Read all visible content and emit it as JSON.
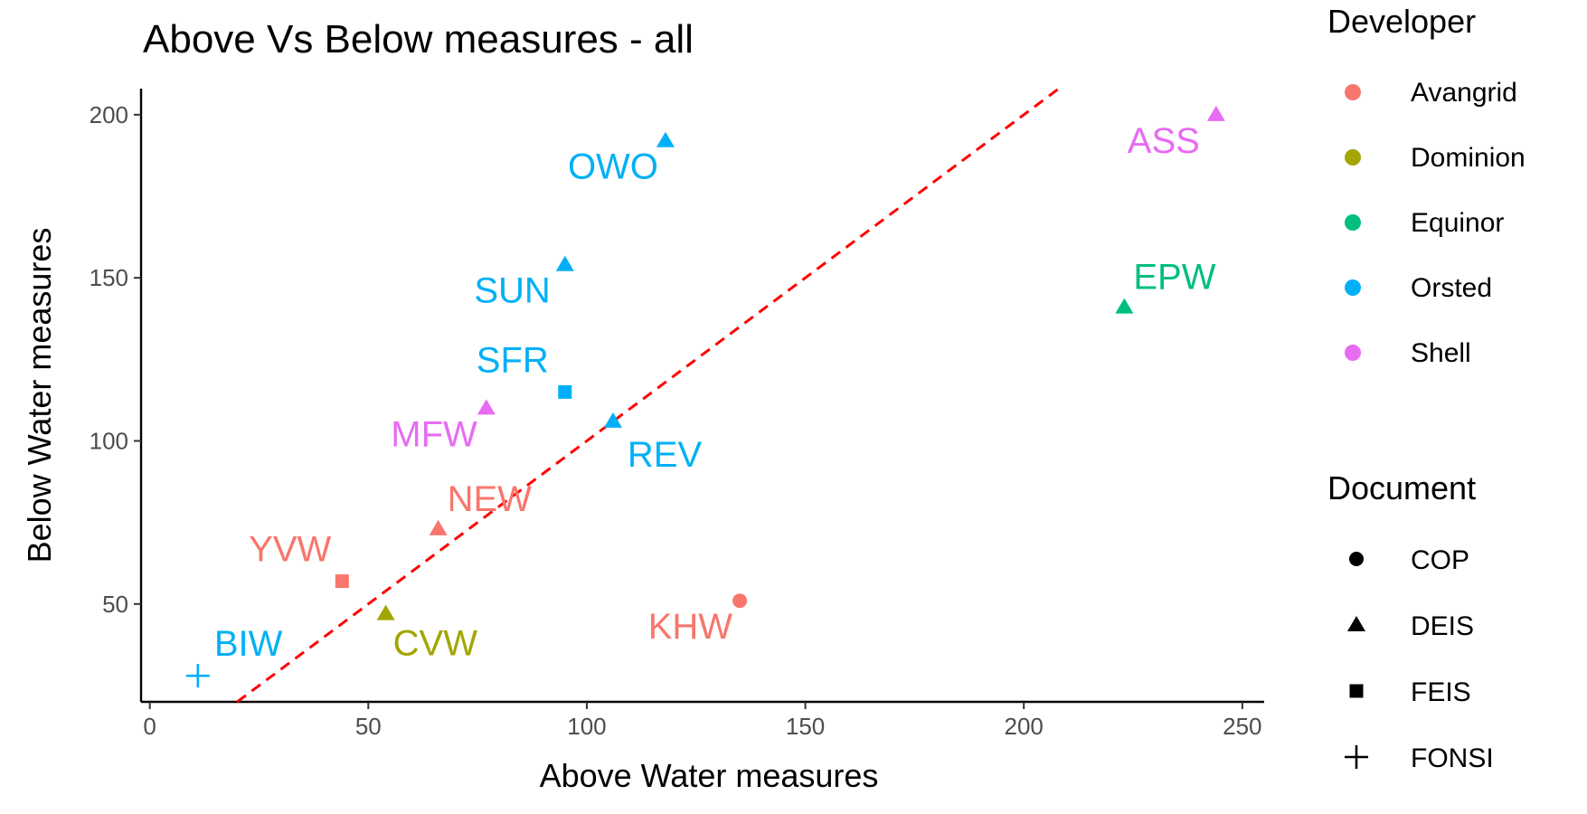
{
  "chart_data": {
    "type": "scatter",
    "title": "Above Vs Below measures - all",
    "xlabel": "Above Water measures",
    "ylabel": "Below Water measures",
    "xlim": [
      -2,
      255
    ],
    "ylim": [
      20,
      208
    ],
    "xticks": [
      0,
      50,
      100,
      150,
      200,
      250
    ],
    "yticks": [
      50,
      100,
      150,
      200
    ],
    "grid": false,
    "reference_line": {
      "style": "dashed",
      "color": "#ff0000",
      "slope": 1,
      "intercept": 0
    },
    "points": [
      {
        "label": "ASS",
        "x": 244,
        "y": 200,
        "developer": "Shell",
        "document": "DEIS"
      },
      {
        "label": "OWO",
        "x": 118,
        "y": 192,
        "developer": "Orsted",
        "document": "DEIS"
      },
      {
        "label": "SUN",
        "x": 95,
        "y": 154,
        "developer": "Orsted",
        "document": "DEIS"
      },
      {
        "label": "EPW",
        "x": 223,
        "y": 141,
        "developer": "Equinor",
        "document": "DEIS"
      },
      {
        "label": "SFR",
        "x": 95,
        "y": 115,
        "developer": "Orsted",
        "document": "FEIS"
      },
      {
        "label": "MFW",
        "x": 77,
        "y": 110,
        "developer": "Shell",
        "document": "DEIS"
      },
      {
        "label": "REV",
        "x": 106,
        "y": 106,
        "developer": "Orsted",
        "document": "DEIS"
      },
      {
        "label": "NEW",
        "x": 66,
        "y": 73,
        "developer": "Avangrid",
        "document": "DEIS"
      },
      {
        "label": "YVW",
        "x": 44,
        "y": 57,
        "developer": "Avangrid",
        "document": "FEIS"
      },
      {
        "label": "KHW",
        "x": 135,
        "y": 51,
        "developer": "Avangrid",
        "document": "COP"
      },
      {
        "label": "CVW",
        "x": 54,
        "y": 47,
        "developer": "Dominion",
        "document": "DEIS"
      },
      {
        "label": "BIW",
        "x": 11,
        "y": 28,
        "developer": "Orsted",
        "document": "FONSI"
      }
    ],
    "legend": {
      "placement": "right",
      "developer": {
        "title": "Developer",
        "items": [
          {
            "name": "Avangrid",
            "color": "#f8766d"
          },
          {
            "name": "Dominion",
            "color": "#a3a500"
          },
          {
            "name": "Equinor",
            "color": "#00bf7d"
          },
          {
            "name": "Orsted",
            "color": "#00b0f6"
          },
          {
            "name": "Shell",
            "color": "#e76bf3"
          }
        ]
      },
      "document": {
        "title": "Document",
        "items": [
          {
            "name": "COP",
            "shape": "circle"
          },
          {
            "name": "DEIS",
            "shape": "triangle"
          },
          {
            "name": "FEIS",
            "shape": "square"
          },
          {
            "name": "FONSI",
            "shape": "plus"
          }
        ]
      }
    }
  }
}
